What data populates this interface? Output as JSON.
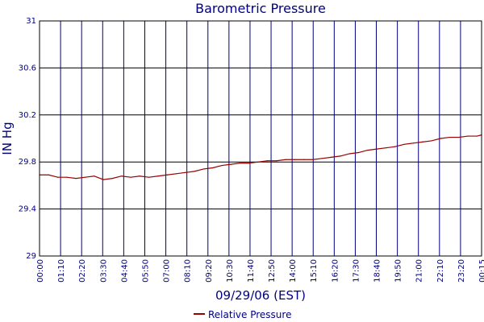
{
  "chart_data": {
    "type": "line",
    "title": "Barometric Pressure",
    "xlabel": "09/29/06 (EST)",
    "ylabel": "IN Hg",
    "ylim": [
      29,
      31
    ],
    "yticks": [
      "29",
      "29.4",
      "29.8",
      "30.2",
      "30.6",
      "31"
    ],
    "xticks": [
      "00:00",
      "01:10",
      "02:20",
      "03:30",
      "04:40",
      "05:50",
      "07:00",
      "08:10",
      "09:20",
      "10:30",
      "11:40",
      "12:50",
      "14:00",
      "15:10",
      "16:20",
      "17:30",
      "18:40",
      "19:50",
      "21:00",
      "22:10",
      "23:20",
      "00:15"
    ],
    "grid": true,
    "legend_position": "bottom",
    "series": [
      {
        "name": "Relative Pressure",
        "color": "#990000",
        "x": [
          "00:00",
          "00:30",
          "01:00",
          "01:30",
          "02:00",
          "02:30",
          "03:00",
          "03:30",
          "04:00",
          "04:30",
          "05:00",
          "05:30",
          "06:00",
          "06:30",
          "07:00",
          "07:30",
          "08:00",
          "08:30",
          "09:00",
          "09:30",
          "10:00",
          "10:30",
          "11:00",
          "11:30",
          "12:00",
          "12:30",
          "13:00",
          "13:30",
          "14:00",
          "14:30",
          "15:00",
          "15:30",
          "16:00",
          "16:30",
          "17:00",
          "17:30",
          "18:00",
          "18:30",
          "19:00",
          "19:30",
          "20:00",
          "20:30",
          "21:00",
          "21:30",
          "22:00",
          "22:30",
          "23:00",
          "23:30",
          "24:00",
          "24:15"
        ],
        "values": [
          29.69,
          29.69,
          29.67,
          29.67,
          29.66,
          29.67,
          29.68,
          29.65,
          29.66,
          29.68,
          29.67,
          29.68,
          29.67,
          29.68,
          29.69,
          29.7,
          29.71,
          29.72,
          29.74,
          29.75,
          29.77,
          29.78,
          29.79,
          29.79,
          29.8,
          29.81,
          29.81,
          29.82,
          29.82,
          29.82,
          29.82,
          29.83,
          29.84,
          29.85,
          29.87,
          29.88,
          29.9,
          29.91,
          29.92,
          29.93,
          29.95,
          29.96,
          29.97,
          29.98,
          30.0,
          30.01,
          30.01,
          30.02,
          30.02,
          30.03
        ]
      }
    ]
  }
}
